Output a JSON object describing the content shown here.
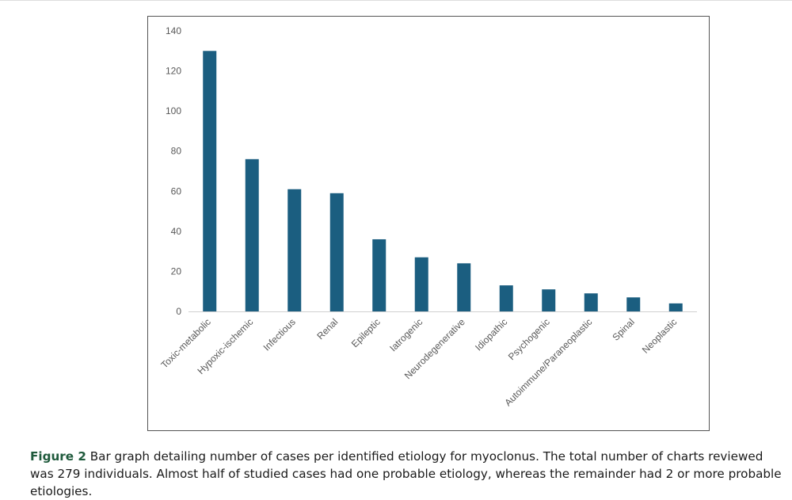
{
  "chart_data": {
    "type": "bar",
    "title": "",
    "xlabel": "",
    "ylabel": "",
    "ylim": [
      0,
      140
    ],
    "yticks": [
      0,
      20,
      40,
      60,
      80,
      100,
      120,
      140
    ],
    "grid": false,
    "categories": [
      "Toxic-metabolic",
      "Hypoxic-ischemic",
      "Infectious",
      "Renal",
      "Epileptic",
      "Iatrogenic",
      "Neurodegenerative",
      "Idiopathic",
      "Psychogenic",
      "Autoimmune/Paraneoplastic",
      "Spinal",
      "Neoplastic"
    ],
    "values": [
      130,
      76,
      61,
      59,
      36,
      27,
      24,
      13,
      11,
      9,
      7,
      4
    ],
    "bar_color": "#1b5e80"
  },
  "caption": {
    "label": "Figure 2",
    "text": " Bar graph detailing number of cases per identified etiology for myoclonus. The total number of charts reviewed was 279 individuals. Almost half of studied cases had one probable etiology, whereas the remainder had 2 or more probable etiologies."
  }
}
